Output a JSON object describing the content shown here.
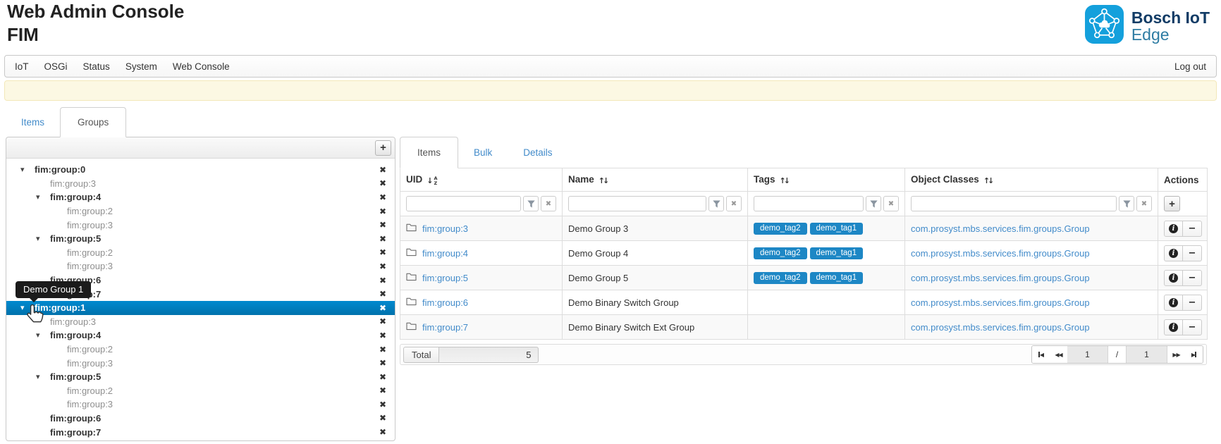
{
  "header": {
    "title_line1": "Web Admin Console",
    "title_line2": "FIM",
    "logo": {
      "brand": "Bosch IoT",
      "product": "Edge",
      "icon": "bosch-iot-edge-network-icon",
      "icon_color": "#14a0dc",
      "brand_color": "#123c66",
      "product_color": "#2e7ca3"
    }
  },
  "navbar": {
    "links": [
      "IoT",
      "OSGi",
      "Status",
      "System",
      "Web Console"
    ],
    "logout_label": "Log out"
  },
  "alert": {
    "text": ""
  },
  "main_tabs": [
    {
      "label": "Items",
      "active": false
    },
    {
      "label": "Groups",
      "active": true
    }
  ],
  "group_tree": {
    "add_button_label": "+",
    "delete_icon": "✖",
    "caret_icon": "▾",
    "items": [
      {
        "label": "fim:group:0",
        "depth": 0,
        "caret": true,
        "style": "bold",
        "selected": false
      },
      {
        "label": "fim:group:3",
        "depth": 1,
        "caret": false,
        "style": "muted",
        "selected": false
      },
      {
        "label": "fim:group:4",
        "depth": 1,
        "caret": true,
        "style": "bold",
        "selected": false
      },
      {
        "label": "fim:group:2",
        "depth": 2,
        "caret": false,
        "style": "muted",
        "selected": false
      },
      {
        "label": "fim:group:3",
        "depth": 2,
        "caret": false,
        "style": "muted",
        "selected": false
      },
      {
        "label": "fim:group:5",
        "depth": 1,
        "caret": true,
        "style": "bold",
        "selected": false
      },
      {
        "label": "fim:group:2",
        "depth": 2,
        "caret": false,
        "style": "muted",
        "selected": false
      },
      {
        "label": "fim:group:3",
        "depth": 2,
        "caret": false,
        "style": "muted",
        "selected": false
      },
      {
        "label": "fim:group:6",
        "depth": 1,
        "caret": false,
        "style": "bold",
        "selected": false
      },
      {
        "label": "fim:group:7",
        "depth": 1,
        "caret": false,
        "style": "bold",
        "selected": false
      },
      {
        "label": "fim:group:1",
        "depth": 0,
        "caret": true,
        "style": "bold",
        "selected": true
      },
      {
        "label": "fim:group:3",
        "depth": 1,
        "caret": false,
        "style": "muted",
        "selected": false
      },
      {
        "label": "fim:group:4",
        "depth": 1,
        "caret": true,
        "style": "bold",
        "selected": false
      },
      {
        "label": "fim:group:2",
        "depth": 2,
        "caret": false,
        "style": "muted",
        "selected": false
      },
      {
        "label": "fim:group:3",
        "depth": 2,
        "caret": false,
        "style": "muted",
        "selected": false
      },
      {
        "label": "fim:group:5",
        "depth": 1,
        "caret": true,
        "style": "bold",
        "selected": false
      },
      {
        "label": "fim:group:2",
        "depth": 2,
        "caret": false,
        "style": "muted",
        "selected": false
      },
      {
        "label": "fim:group:3",
        "depth": 2,
        "caret": false,
        "style": "muted",
        "selected": false
      },
      {
        "label": "fim:group:6",
        "depth": 1,
        "caret": false,
        "style": "bold",
        "selected": false
      },
      {
        "label": "fim:group:7",
        "depth": 1,
        "caret": false,
        "style": "bold",
        "selected": false
      }
    ],
    "selected_color": "#0081c2"
  },
  "tooltip": {
    "text": "Demo Group 1"
  },
  "detail_tabs": [
    {
      "label": "Items",
      "active": true
    },
    {
      "label": "Bulk",
      "active": false
    },
    {
      "label": "Details",
      "active": false
    }
  ],
  "table": {
    "columns": [
      {
        "label": "UID",
        "sort": "az"
      },
      {
        "label": "Name",
        "sort": "updown"
      },
      {
        "label": "Tags",
        "sort": "updown"
      },
      {
        "label": "Object Classes",
        "sort": "updown"
      },
      {
        "label": "Actions",
        "sort": null
      }
    ],
    "filter_values": [
      "",
      "",
      "",
      ""
    ],
    "filter_placeholder": "",
    "rows": [
      {
        "uid": "fim:group:3",
        "name": "Demo Group 3",
        "tags": [
          "demo_tag2",
          "demo_tag1"
        ],
        "object_class": "com.prosyst.mbs.services.fim.groups.Group"
      },
      {
        "uid": "fim:group:4",
        "name": "Demo Group 4",
        "tags": [
          "demo_tag2",
          "demo_tag1"
        ],
        "object_class": "com.prosyst.mbs.services.fim.groups.Group"
      },
      {
        "uid": "fim:group:5",
        "name": "Demo Group 5",
        "tags": [
          "demo_tag2",
          "demo_tag1"
        ],
        "object_class": "com.prosyst.mbs.services.fim.groups.Group"
      },
      {
        "uid": "fim:group:6",
        "name": "Demo Binary Switch Group",
        "tags": [],
        "object_class": "com.prosyst.mbs.services.fim.groups.Group"
      },
      {
        "uid": "fim:group:7",
        "name": "Demo Binary Switch Ext Group",
        "tags": [],
        "object_class": "com.prosyst.mbs.services.fim.groups.Group"
      }
    ],
    "tag_color": "#1d87c5",
    "link_color": "#428bca",
    "add_row_button_label": "+"
  },
  "footer": {
    "total_label": "Total",
    "total_value": "5",
    "page_current": "1",
    "page_separator": "/",
    "page_total": "1"
  }
}
